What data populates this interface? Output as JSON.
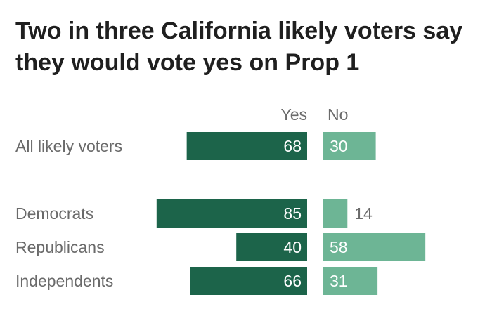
{
  "title": "Two in three California likely voters say they would vote yes on Prop 1",
  "colors": {
    "yes": "#1c644a",
    "no": "#6db595",
    "text": "#6a6a6a",
    "title": "#1f1f1f"
  },
  "chart_data": {
    "type": "bar",
    "orientation": "horizontal-diverging",
    "column_headers": [
      "Yes",
      "No"
    ],
    "categories": [
      "All likely voters",
      "Democrats",
      "Republicans",
      "Independents"
    ],
    "series": [
      {
        "name": "Yes",
        "values": [
          68,
          85,
          40,
          66
        ]
      },
      {
        "name": "No",
        "values": [
          30,
          14,
          58,
          31
        ]
      }
    ],
    "data_labels": true,
    "grid": false
  }
}
